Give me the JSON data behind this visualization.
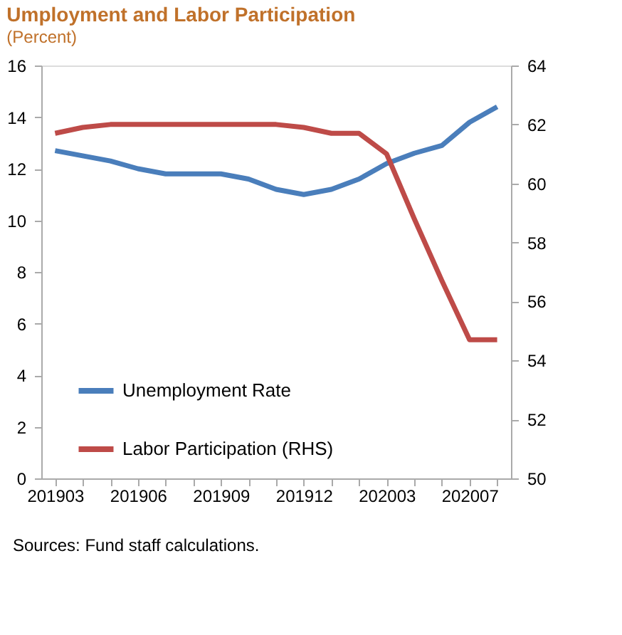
{
  "chart_data": {
    "type": "line",
    "title": "Umployment and Labor Participation",
    "subtitle": "(Percent)",
    "categories": [
      "201903",
      null,
      null,
      "201906",
      null,
      null,
      "201909",
      null,
      null,
      "201912",
      null,
      null,
      "202003",
      null,
      null,
      "202007",
      null
    ],
    "series": [
      {
        "name": "Unemployment Rate",
        "color": "#4a7ebb",
        "values": [
          12.7,
          12.5,
          12.3,
          12.0,
          11.8,
          11.8,
          11.8,
          11.6,
          11.2,
          11.0,
          11.2,
          11.6,
          12.2,
          12.6,
          12.9,
          13.8,
          14.4
        ]
      },
      {
        "name": "Labor Participation (RHS)",
        "color": "#be4b48",
        "axis": "y2",
        "values": [
          61.7,
          61.9,
          62.0,
          62.0,
          62.0,
          62.0,
          62.0,
          62.0,
          62.0,
          61.9,
          61.7,
          61.7,
          61.0,
          58.8,
          56.7,
          54.7,
          54.7
        ]
      }
    ],
    "ylim": [
      0,
      16
    ],
    "yticks": [
      0,
      2,
      4,
      6,
      8,
      10,
      12,
      14,
      16
    ],
    "y2lim": [
      50,
      64
    ],
    "y2ticks": [
      50,
      52,
      54,
      56,
      58,
      60,
      62,
      64
    ],
    "grid": false,
    "legend": "bottom left",
    "marker": "none",
    "line_style": "solid",
    "annotations": [
      "Sources: Fund staff calculations."
    ]
  }
}
